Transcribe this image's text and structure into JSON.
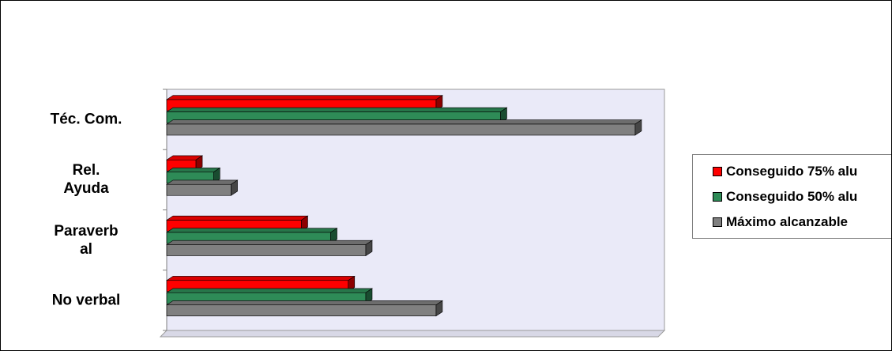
{
  "chart_data": {
    "type": "bar",
    "orientation": "horizontal",
    "categories": [
      "No verbal",
      "Paraverbal",
      "Rel. Ayuda",
      "Téc. Com."
    ],
    "category_display": [
      [
        "No verbal"
      ],
      [
        "Paraverb",
        "al"
      ],
      [
        "Rel.",
        "Ayuda"
      ],
      [
        "Téc. Com."
      ]
    ],
    "series": [
      {
        "name": "Conseguido 75% alu",
        "color": "#ff0000",
        "values": [
          31,
          23,
          5,
          46
        ]
      },
      {
        "name": "Conseguido 50% alu",
        "color": "#2e8b57",
        "values": [
          34,
          28,
          8,
          57
        ]
      },
      {
        "name": "Máximo alcanzable",
        "color": "#808080",
        "values": [
          46,
          34,
          11,
          80
        ]
      }
    ],
    "xlim": [
      0,
      85
    ],
    "grid": false,
    "plot_background": "#eaeaf8",
    "legend": "right",
    "title": "",
    "xlabel": "",
    "ylabel": ""
  }
}
